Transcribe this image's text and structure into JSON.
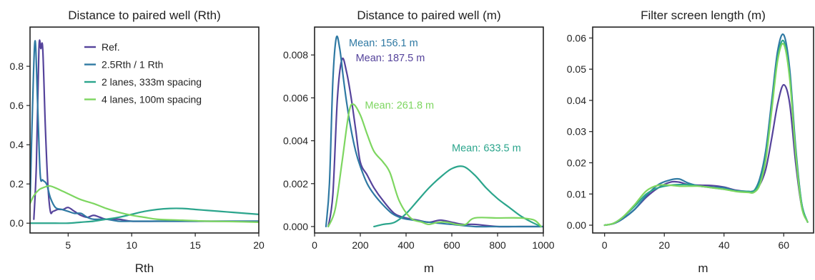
{
  "colors": {
    "ref": "#55439B",
    "rth": "#2F79A3",
    "lanes2": "#2BA58C",
    "lanes4": "#7DD660"
  },
  "legend": {
    "entries": [
      "Ref.",
      "2.5Rth / 1 Rth",
      "2 lanes, 333m spacing",
      "4 lanes, 100m spacing"
    ]
  },
  "chart_data": [
    {
      "type": "line",
      "title": "Distance to paired well (Rth)",
      "xlabel": "Rth",
      "ylabel": "",
      "xlim": [
        2.0,
        20.0
      ],
      "ylim": [
        -0.05,
        1.0
      ],
      "xticks": [
        5,
        10,
        15,
        20
      ],
      "xtick_labels": [
        "5",
        "10",
        "15",
        "20"
      ],
      "yticks": [
        0.0,
        0.2,
        0.4,
        0.6,
        0.8
      ],
      "ytick_labels": [
        "0.0",
        "0.2",
        "0.4",
        "0.6",
        "0.8"
      ],
      "grid": false,
      "legend_position": "top-right",
      "series": [
        {
          "name": "Ref.",
          "color_key": "ref",
          "x": [
            2.3,
            2.5,
            2.7,
            2.85,
            3.0,
            3.2,
            3.4,
            3.6,
            3.8,
            4.2,
            4.6,
            5.0,
            5.5,
            6.0,
            6.5,
            7.0,
            7.5,
            8.0,
            9.0,
            10.0,
            12.0,
            15.0,
            20.0
          ],
          "y": [
            0.02,
            0.3,
            0.89,
            0.89,
            0.89,
            0.5,
            0.2,
            0.06,
            0.06,
            0.07,
            0.07,
            0.08,
            0.06,
            0.04,
            0.03,
            0.04,
            0.03,
            0.02,
            0.02,
            0.01,
            0.01,
            0.01,
            0.01
          ]
        },
        {
          "name": "2.5Rth / 1 Rth",
          "color_key": "rth",
          "x": [
            2.0,
            2.2,
            2.4,
            2.6,
            2.8,
            3.0,
            3.3,
            3.6,
            4.0,
            4.5,
            5.0,
            5.5,
            6.0,
            6.5,
            7.0,
            8.0,
            9.0,
            10.0,
            12.0,
            15.0,
            20.0
          ],
          "y": [
            0.1,
            0.6,
            0.93,
            0.6,
            0.25,
            0.22,
            0.2,
            0.13,
            0.08,
            0.07,
            0.06,
            0.05,
            0.05,
            0.03,
            0.02,
            0.02,
            0.01,
            0.01,
            0.01,
            0.01,
            0.01
          ]
        },
        {
          "name": "2 lanes, 333m spacing",
          "color_key": "lanes2",
          "x": [
            2.0,
            3.0,
            4.0,
            5.0,
            6.0,
            7.0,
            8.0,
            9.0,
            10.0,
            11.0,
            12.0,
            13.0,
            14.0,
            15.0,
            16.0,
            17.0,
            18.0,
            19.0,
            20.0
          ],
          "y": [
            0.0,
            0.0,
            0.0,
            0.0,
            0.005,
            0.01,
            0.02,
            0.03,
            0.045,
            0.06,
            0.07,
            0.075,
            0.075,
            0.07,
            0.065,
            0.06,
            0.055,
            0.05,
            0.045
          ]
        },
        {
          "name": "4 lanes, 100m spacing",
          "color_key": "lanes4",
          "x": [
            2.0,
            2.3,
            2.7,
            3.0,
            3.5,
            4.0,
            4.5,
            5.0,
            6.0,
            7.0,
            8.0,
            9.0,
            10.0,
            11.0,
            12.0,
            14.0,
            16.0,
            18.0,
            20.0
          ],
          "y": [
            0.1,
            0.14,
            0.17,
            0.18,
            0.19,
            0.18,
            0.165,
            0.15,
            0.12,
            0.1,
            0.075,
            0.055,
            0.04,
            0.03,
            0.02,
            0.015,
            0.01,
            0.008,
            0.005
          ]
        }
      ]
    },
    {
      "type": "line",
      "title": "Distance to paired well (m)",
      "xlabel": "m",
      "ylabel": "",
      "xlim": [
        0,
        1000
      ],
      "ylim": [
        -0.0003,
        0.0093
      ],
      "xticks": [
        0,
        200,
        400,
        600,
        800,
        1000
      ],
      "xtick_labels": [
        "0",
        "200",
        "400",
        "600",
        "800",
        "1000"
      ],
      "yticks": [
        0.0,
        0.002,
        0.004,
        0.006,
        0.008
      ],
      "ytick_labels": [
        "0.000",
        "0.002",
        "0.004",
        "0.006",
        "0.008"
      ],
      "grid": false,
      "annotations": [
        {
          "text": "Mean: 156.1 m",
          "color_key": "rth",
          "x": 150,
          "y": 0.0084
        },
        {
          "text": "Mean: 187.5 m",
          "color_key": "ref",
          "x": 180,
          "y": 0.0077
        },
        {
          "text": "Mean: 261.8 m",
          "color_key": "lanes4",
          "x": 220,
          "y": 0.0055
        },
        {
          "text": "Mean: 633.5 m",
          "color_key": "lanes2",
          "x": 600,
          "y": 0.0035
        }
      ],
      "series": [
        {
          "name": "Ref.",
          "color_key": "ref",
          "x": [
            60,
            80,
            100,
            120,
            140,
            160,
            180,
            200,
            230,
            260,
            300,
            350,
            400,
            450,
            500,
            550,
            600,
            650,
            700,
            800,
            900,
            1000
          ],
          "y": [
            0.0,
            0.0015,
            0.006,
            0.0078,
            0.0072,
            0.006,
            0.0045,
            0.003,
            0.0024,
            0.0018,
            0.0012,
            0.0006,
            0.0004,
            0.0003,
            0.0002,
            0.0003,
            0.0002,
            0.0001,
            0.0001,
            0.0,
            0.0,
            0.0
          ]
        },
        {
          "name": "2.5Rth / 1 Rth",
          "color_key": "rth",
          "x": [
            50,
            65,
            80,
            95,
            110,
            125,
            140,
            160,
            180,
            200,
            230,
            260,
            300,
            340,
            380,
            430,
            500,
            600,
            700,
            800,
            900,
            1000
          ],
          "y": [
            0.0,
            0.002,
            0.0068,
            0.0088,
            0.0083,
            0.007,
            0.0058,
            0.0045,
            0.0035,
            0.0028,
            0.002,
            0.0015,
            0.001,
            0.0006,
            0.0004,
            0.0003,
            0.0002,
            0.0001,
            0.0,
            0.0,
            0.0,
            0.0
          ]
        },
        {
          "name": "2 lanes, 333m spacing",
          "color_key": "lanes2",
          "x": [
            260,
            300,
            350,
            400,
            450,
            500,
            550,
            600,
            650,
            700,
            750,
            800,
            850,
            900,
            950,
            990
          ],
          "y": [
            0.0,
            0.0001,
            0.0002,
            0.0006,
            0.0012,
            0.0018,
            0.0023,
            0.0027,
            0.0028,
            0.0024,
            0.0018,
            0.0013,
            0.0009,
            0.0005,
            0.0002,
            0.0
          ]
        },
        {
          "name": "4 lanes, 100m spacing",
          "color_key": "lanes4",
          "x": [
            60,
            90,
            120,
            150,
            170,
            200,
            230,
            260,
            300,
            330,
            370,
            420,
            470,
            500,
            540,
            580,
            620,
            660,
            700,
            800,
            900,
            960,
            990
          ],
          "y": [
            0.0,
            0.0008,
            0.003,
            0.0053,
            0.0057,
            0.0052,
            0.0043,
            0.0035,
            0.003,
            0.0025,
            0.0012,
            0.0004,
            0.0002,
            0.0001,
            0.0002,
            0.0002,
            0.0001,
            0.0001,
            0.0004,
            0.0004,
            0.0004,
            0.0003,
            0.0
          ]
        }
      ]
    },
    {
      "type": "line",
      "title": "Filter screen length (m)",
      "xlabel": "m",
      "ylabel": "",
      "xlim": [
        -4,
        70
      ],
      "ylim": [
        -0.0025,
        0.0635
      ],
      "xticks": [
        0,
        20,
        40,
        60
      ],
      "xtick_labels": [
        "0",
        "20",
        "40",
        "60"
      ],
      "yticks": [
        0.0,
        0.01,
        0.02,
        0.03,
        0.04,
        0.05,
        0.06
      ],
      "ytick_labels": [
        "0.00",
        "0.01",
        "0.02",
        "0.03",
        "0.04",
        "0.05",
        "0.06"
      ],
      "grid": false,
      "series": [
        {
          "name": "Ref.",
          "color_key": "ref",
          "x": [
            0,
            3,
            6,
            10,
            14,
            18,
            22,
            25,
            28,
            32,
            36,
            40,
            44,
            48,
            50,
            52,
            54,
            56,
            58,
            60,
            62,
            64,
            66,
            68
          ],
          "y": [
            0.0,
            0.0005,
            0.002,
            0.005,
            0.009,
            0.012,
            0.0138,
            0.0138,
            0.013,
            0.0128,
            0.0127,
            0.0122,
            0.0112,
            0.0108,
            0.011,
            0.013,
            0.018,
            0.028,
            0.039,
            0.045,
            0.039,
            0.02,
            0.006,
            0.001
          ]
        },
        {
          "name": "2.5Rth / 1 Rth",
          "color_key": "rth",
          "x": [
            0,
            3,
            6,
            10,
            14,
            18,
            22,
            25,
            28,
            32,
            36,
            40,
            44,
            48,
            50,
            52,
            54,
            56,
            58,
            60,
            62,
            64,
            66,
            68
          ],
          "y": [
            0.0,
            0.0005,
            0.002,
            0.005,
            0.0095,
            0.013,
            0.0145,
            0.0148,
            0.0135,
            0.0125,
            0.0122,
            0.012,
            0.011,
            0.0108,
            0.011,
            0.015,
            0.024,
            0.04,
            0.056,
            0.061,
            0.05,
            0.025,
            0.007,
            0.001
          ]
        },
        {
          "name": "2 lanes, 333m spacing",
          "color_key": "lanes2",
          "x": [
            0,
            3,
            6,
            10,
            14,
            18,
            22,
            25,
            28,
            32,
            36,
            40,
            44,
            48,
            50,
            52,
            54,
            56,
            58,
            60,
            62,
            64,
            66,
            68
          ],
          "y": [
            0.0,
            0.0006,
            0.0025,
            0.006,
            0.01,
            0.012,
            0.0128,
            0.013,
            0.013,
            0.0125,
            0.012,
            0.0115,
            0.011,
            0.0108,
            0.011,
            0.014,
            0.022,
            0.038,
            0.054,
            0.059,
            0.048,
            0.024,
            0.007,
            0.001
          ]
        },
        {
          "name": "4 lanes, 100m spacing",
          "color_key": "lanes4",
          "x": [
            0,
            3,
            6,
            10,
            14,
            18,
            22,
            25,
            28,
            32,
            36,
            40,
            44,
            48,
            50,
            52,
            54,
            56,
            58,
            60,
            62,
            64,
            66,
            68
          ],
          "y": [
            0.0,
            0.0006,
            0.0025,
            0.0065,
            0.011,
            0.0128,
            0.0128,
            0.0125,
            0.0125,
            0.0125,
            0.012,
            0.0115,
            0.0108,
            0.0105,
            0.0105,
            0.013,
            0.021,
            0.037,
            0.053,
            0.058,
            0.047,
            0.023,
            0.006,
            0.001
          ]
        }
      ]
    }
  ]
}
